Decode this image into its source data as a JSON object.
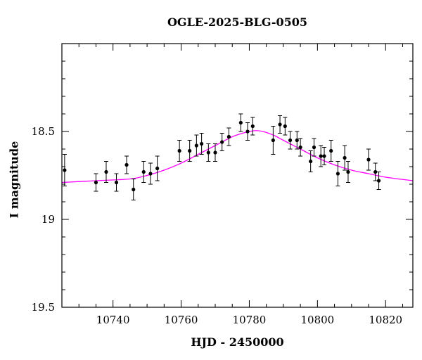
{
  "chart_data": {
    "type": "scatter",
    "title": "OGLE-2025-BLG-0505",
    "xlabel": "HJD - 2450000",
    "ylabel": "I magnitude",
    "xlim": [
      10725,
      10828
    ],
    "ylim": [
      19.5,
      18.0
    ],
    "y_inverted": true,
    "grid": false,
    "x_ticks": [
      10740,
      10760,
      10780,
      10800,
      10820
    ],
    "x_tick_labels": [
      "10740",
      "10760",
      "10780",
      "10800",
      "10820"
    ],
    "y_ticks": [
      18.5,
      19.0,
      19.5
    ],
    "y_tick_labels": [
      "18.5",
      "19",
      "19.5"
    ],
    "series": [
      {
        "kind": "points_with_errorbars",
        "color": "#000000",
        "points": [
          {
            "x": 10725.8,
            "y": 18.72,
            "err": 0.09
          },
          {
            "x": 10735.0,
            "y": 18.79,
            "err": 0.05
          },
          {
            "x": 10738.0,
            "y": 18.73,
            "err": 0.06
          },
          {
            "x": 10741.0,
            "y": 18.79,
            "err": 0.05
          },
          {
            "x": 10744.0,
            "y": 18.69,
            "err": 0.05
          },
          {
            "x": 10746.0,
            "y": 18.83,
            "err": 0.06
          },
          {
            "x": 10749.0,
            "y": 18.73,
            "err": 0.06
          },
          {
            "x": 10751.0,
            "y": 18.74,
            "err": 0.06
          },
          {
            "x": 10753.0,
            "y": 18.71,
            "err": 0.07
          },
          {
            "x": 10759.5,
            "y": 18.61,
            "err": 0.06
          },
          {
            "x": 10762.5,
            "y": 18.61,
            "err": 0.06
          },
          {
            "x": 10764.5,
            "y": 18.58,
            "err": 0.06
          },
          {
            "x": 10766.0,
            "y": 18.57,
            "err": 0.06
          },
          {
            "x": 10768.0,
            "y": 18.62,
            "err": 0.05
          },
          {
            "x": 10770.0,
            "y": 18.62,
            "err": 0.05
          },
          {
            "x": 10772.0,
            "y": 18.56,
            "err": 0.05
          },
          {
            "x": 10774.0,
            "y": 18.53,
            "err": 0.05
          },
          {
            "x": 10777.5,
            "y": 18.45,
            "err": 0.05
          },
          {
            "x": 10779.5,
            "y": 18.5,
            "err": 0.05
          },
          {
            "x": 10781.0,
            "y": 18.47,
            "err": 0.05
          },
          {
            "x": 10787.0,
            "y": 18.55,
            "err": 0.08
          },
          {
            "x": 10789.0,
            "y": 18.46,
            "err": 0.05
          },
          {
            "x": 10790.5,
            "y": 18.47,
            "err": 0.05
          },
          {
            "x": 10792.0,
            "y": 18.55,
            "err": 0.05
          },
          {
            "x": 10794.0,
            "y": 18.55,
            "err": 0.05
          },
          {
            "x": 10795.0,
            "y": 18.59,
            "err": 0.05
          },
          {
            "x": 10798.0,
            "y": 18.67,
            "err": 0.06
          },
          {
            "x": 10799.0,
            "y": 18.59,
            "err": 0.05
          },
          {
            "x": 10801.0,
            "y": 18.64,
            "err": 0.06
          },
          {
            "x": 10802.0,
            "y": 18.64,
            "err": 0.05
          },
          {
            "x": 10804.0,
            "y": 18.61,
            "err": 0.06
          },
          {
            "x": 10806.0,
            "y": 18.74,
            "err": 0.07
          },
          {
            "x": 10808.0,
            "y": 18.65,
            "err": 0.07
          },
          {
            "x": 10809.0,
            "y": 18.73,
            "err": 0.06
          },
          {
            "x": 10815.0,
            "y": 18.66,
            "err": 0.06
          },
          {
            "x": 10817.0,
            "y": 18.73,
            "err": 0.05
          },
          {
            "x": 10818.0,
            "y": 18.78,
            "err": 0.05
          }
        ]
      },
      {
        "kind": "model_curve",
        "color": "#ff00ff",
        "x": [
          10725,
          10735,
          10745,
          10750,
          10755,
          10760,
          10765,
          10770,
          10775,
          10778,
          10780,
          10782,
          10784,
          10787,
          10790,
          10795,
          10800,
          10805,
          10810,
          10815,
          10820,
          10828
        ],
        "y": [
          18.79,
          18.78,
          18.77,
          18.75,
          18.72,
          18.68,
          18.63,
          18.58,
          18.53,
          18.51,
          18.5,
          18.495,
          18.5,
          18.52,
          18.55,
          18.6,
          18.65,
          18.69,
          18.72,
          18.74,
          18.76,
          18.78
        ]
      }
    ]
  }
}
